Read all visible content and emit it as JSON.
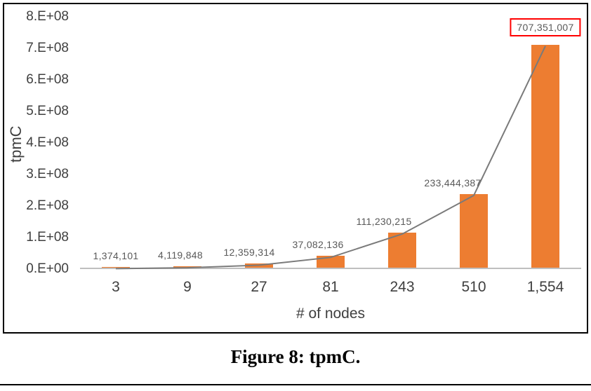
{
  "figure": {
    "caption": "Figure 8: tpmC."
  },
  "chart_data": {
    "type": "bar",
    "title": "",
    "xlabel": "# of nodes",
    "ylabel": "tpmC",
    "categories": [
      "3",
      "9",
      "27",
      "81",
      "243",
      "510",
      "1,554"
    ],
    "values": [
      1374101,
      4119848,
      12359314,
      37082136,
      111230215,
      233444387,
      707351007
    ],
    "data_labels": [
      "1,374,101",
      "4,119,848",
      "12,359,314",
      "37,082,136",
      "111,230,215",
      "233,444,387",
      "707,351,007"
    ],
    "overlay_line_series": "same values as bars",
    "highlighted_label_index": 6,
    "ylim": [
      0,
      800000000
    ],
    "yticks": [
      "0.E+00",
      "1.E+08",
      "2.E+08",
      "3.E+08",
      "4.E+08",
      "5.E+08",
      "6.E+08",
      "7.E+08",
      "8.E+08"
    ],
    "grid": false,
    "legend": "none",
    "label_dx": [
      0,
      -10,
      -14,
      -18,
      -26,
      -30,
      0
    ],
    "colors": {
      "bar": "#ED7D31",
      "line": "#7A7A7A",
      "data_label": "#595959",
      "axis_text": "#3F3F3F",
      "highlight_box_border": "#FF0000",
      "axis_line": "#BFBFBF",
      "frame_border": "#000000"
    }
  }
}
